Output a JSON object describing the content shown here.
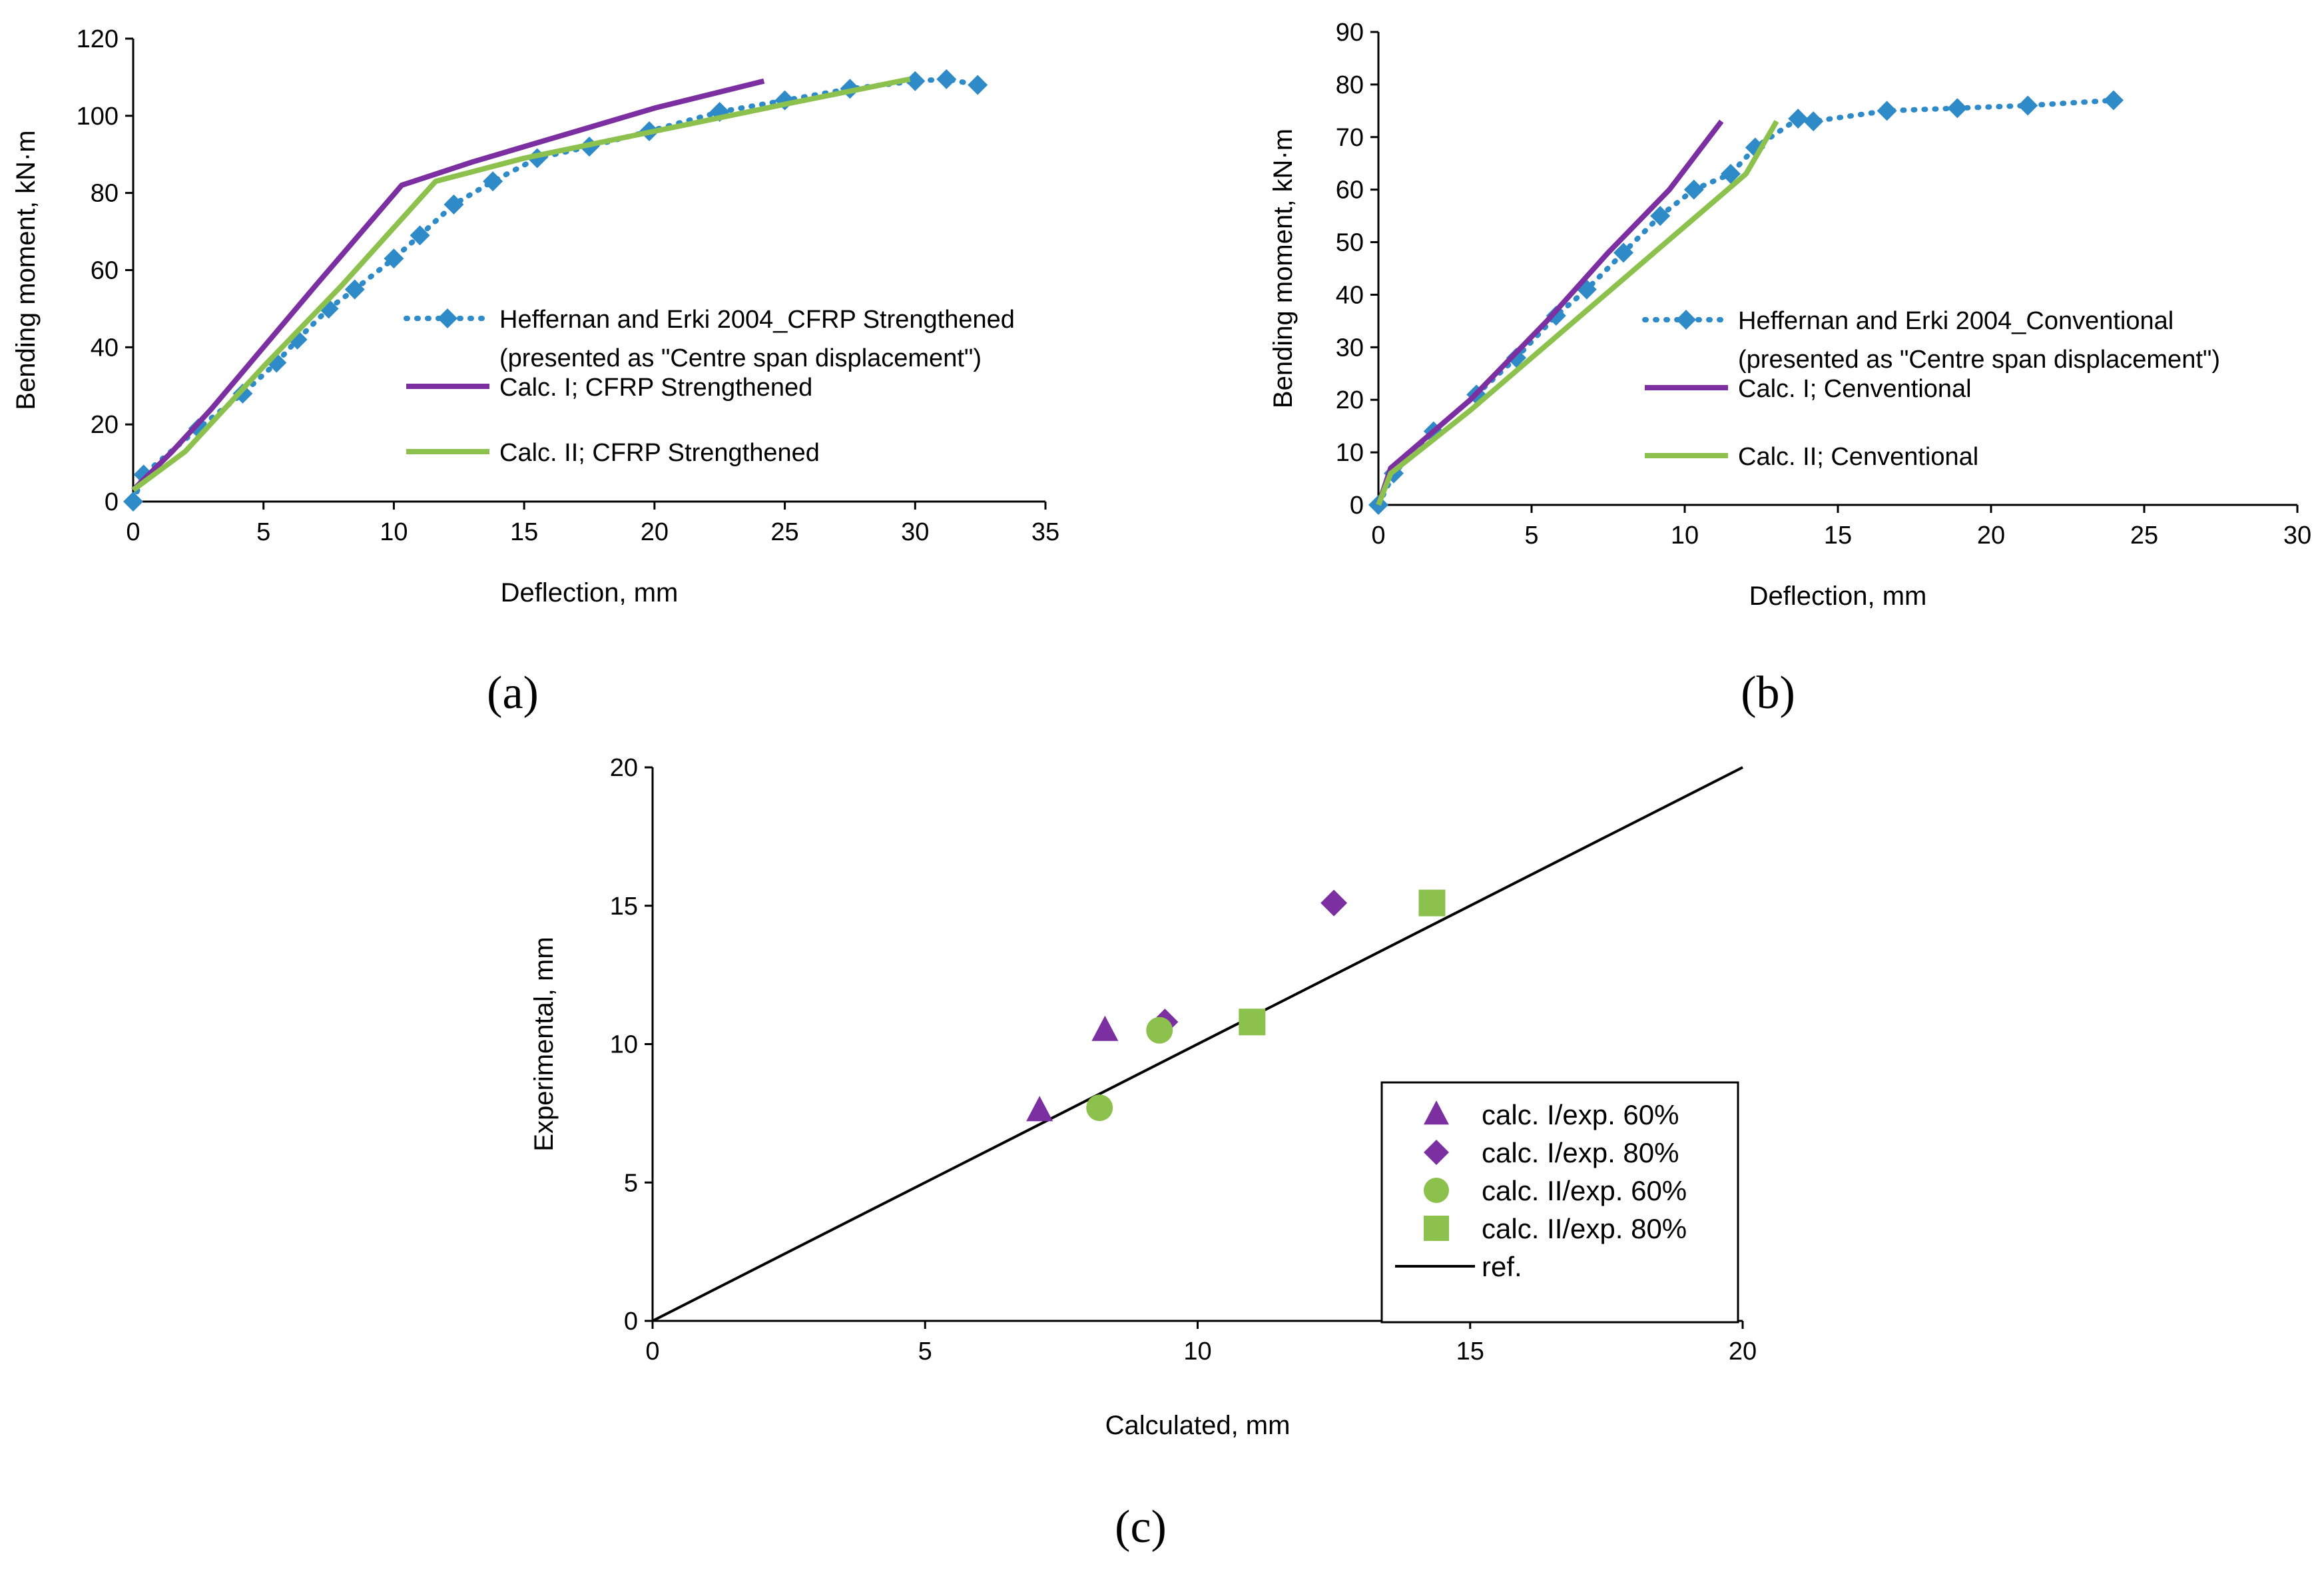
{
  "colors": {
    "experimental": "#2E8BC8",
    "calc1": "#7B2FA0",
    "calc2": "#8DC14E",
    "ref": "#000000"
  },
  "panel_labels": [
    "(a)",
    "(b)",
    "(c)"
  ],
  "chart_data": [
    {
      "type": "line",
      "panel": "(a)",
      "xlabel": "Deflection, mm",
      "ylabel": "Bending moment, kN·m",
      "xlim": [
        0,
        35
      ],
      "ylim": [
        0,
        120
      ],
      "xticks": [
        0,
        5,
        10,
        15,
        20,
        25,
        30,
        35
      ],
      "yticks": [
        0,
        20,
        40,
        60,
        80,
        100,
        120
      ],
      "grid": false,
      "legend_position": "center-right",
      "series": [
        {
          "name": "Heffernan and Erki 2004_CFRP Strengthened",
          "name_line2": "(presented as \"Centre span displacement\")",
          "style": "dotted-diamond",
          "color": "#2E8BC8",
          "x": [
            0,
            0.4,
            2.5,
            4.2,
            5.5,
            6.3,
            7.5,
            8.5,
            10,
            11,
            12.3,
            13.8,
            15.5,
            17.5,
            19.8,
            22.5,
            25,
            27.5,
            30,
            31.2,
            32.4
          ],
          "y": [
            0,
            7,
            19,
            28,
            36,
            42,
            50,
            55,
            63,
            69,
            77,
            83,
            89,
            92,
            96,
            101,
            104,
            107,
            109,
            109.5,
            108
          ]
        },
        {
          "name": "Calc. I; CFRP Strengthened",
          "style": "solid",
          "color": "#7B2FA0",
          "x": [
            0,
            1.5,
            3,
            5,
            7,
            10.3,
            13,
            16,
            20,
            24.2
          ],
          "y": [
            3,
            13,
            24,
            40,
            56,
            82,
            88,
            94,
            102,
            109
          ]
        },
        {
          "name": "Calc. II; CFRP Strengthened",
          "style": "solid",
          "color": "#8DC14E",
          "x": [
            0,
            2,
            5,
            8,
            11.6,
            15,
            20,
            25,
            29.8
          ],
          "y": [
            3,
            13,
            35,
            56,
            83,
            89,
            96,
            103,
            109.5
          ]
        }
      ]
    },
    {
      "type": "line",
      "panel": "(b)",
      "xlabel": "Deflection, mm",
      "ylabel": "Bending moment, kN·m",
      "xlim": [
        0,
        30
      ],
      "ylim": [
        0,
        90
      ],
      "xticks": [
        0,
        5,
        10,
        15,
        20,
        25,
        30
      ],
      "yticks": [
        0,
        10,
        20,
        30,
        40,
        50,
        60,
        70,
        80,
        90
      ],
      "grid": false,
      "legend_position": "center-right",
      "series": [
        {
          "name": "Heffernan and Erki 2004_Conventional",
          "name_line2": "(presented as \"Centre span displacement\")",
          "style": "dotted-diamond",
          "color": "#2E8BC8",
          "x": [
            0,
            0.5,
            1.8,
            3.2,
            4.5,
            5.8,
            6.8,
            8,
            9.2,
            10.3,
            11.5,
            12.3,
            13.7,
            14.2,
            16.6,
            18.9,
            21.2,
            24
          ],
          "y": [
            0,
            6,
            14,
            21,
            28,
            36,
            41,
            48,
            55,
            60,
            63,
            68,
            73.5,
            73,
            75,
            75.5,
            76,
            77
          ]
        },
        {
          "name": "Calc. I; Cenventional",
          "style": "solid",
          "color": "#7B2FA0",
          "x": [
            0,
            0.4,
            3,
            5.5,
            7.5,
            9.5,
            11.2
          ],
          "y": [
            0,
            7,
            20,
            35,
            48,
            60,
            73
          ]
        },
        {
          "name": "Calc. II; Cenventional",
          "style": "solid",
          "color": "#8DC14E",
          "x": [
            0,
            0.4,
            3,
            6,
            9,
            12,
            13
          ],
          "y": [
            0,
            6,
            18,
            33,
            48,
            63,
            73
          ]
        }
      ]
    },
    {
      "type": "scatter",
      "panel": "(c)",
      "xlabel": "Calculated, mm",
      "ylabel": "Experimental, mm",
      "xlim": [
        0,
        20
      ],
      "ylim": [
        0,
        20
      ],
      "xticks": [
        0,
        5,
        10,
        15,
        20
      ],
      "yticks": [
        0,
        5,
        10,
        15,
        20
      ],
      "grid": false,
      "legend_position": "bottom-right",
      "series": [
        {
          "name": "calc. I/exp. 60%",
          "marker": "triangle",
          "color": "#7B2FA0",
          "x": [
            7.1,
            8.3
          ],
          "y": [
            7.6,
            10.5
          ]
        },
        {
          "name": "calc. I/exp. 80%",
          "marker": "diamond",
          "color": "#7B2FA0",
          "x": [
            9.4,
            12.5
          ],
          "y": [
            10.8,
            15.1
          ]
        },
        {
          "name": "calc. II/exp. 60%",
          "marker": "circle",
          "color": "#8DC14E",
          "x": [
            8.2,
            9.3
          ],
          "y": [
            7.7,
            10.5
          ]
        },
        {
          "name": "calc. II/exp. 80%",
          "marker": "square",
          "color": "#8DC14E",
          "x": [
            11,
            14.3
          ],
          "y": [
            10.8,
            15.1
          ]
        },
        {
          "name": "ref.",
          "marker": "line",
          "color": "#000000",
          "x": [
            0,
            20
          ],
          "y": [
            0,
            20
          ]
        }
      ]
    }
  ]
}
